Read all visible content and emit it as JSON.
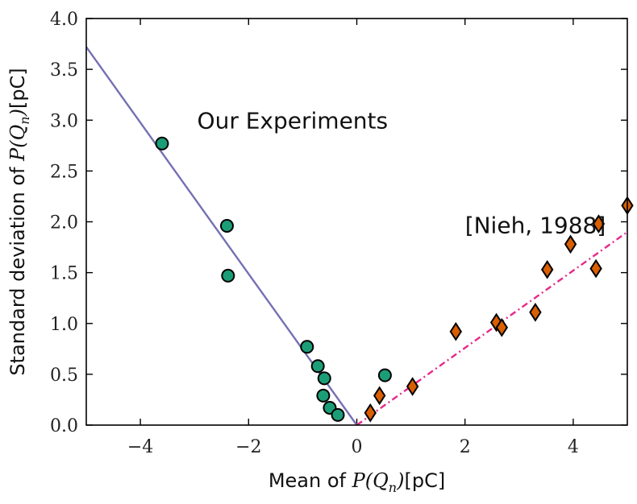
{
  "chart_data": {
    "type": "scatter",
    "title": "",
    "xlabel": {
      "prefix": "Mean of ",
      "math": "P(Q",
      "sub": "n",
      "close": ")",
      "unit": "[pC]"
    },
    "ylabel": {
      "prefix": "Standard deviation of ",
      "math": "P(Q",
      "sub": "n",
      "close": ")",
      "unit": "[pC]"
    },
    "xlim": [
      -5,
      5
    ],
    "ylim": [
      0,
      4
    ],
    "xticks": [
      -4,
      -2,
      0,
      2,
      4
    ],
    "xtick_labels": [
      "−4",
      "−2",
      "0",
      "2",
      "4"
    ],
    "yticks": [
      0,
      0.5,
      1,
      1.5,
      2,
      2.5,
      3,
      3.5,
      4
    ],
    "ytick_labels": [
      "0.0",
      "0.5",
      "1.0",
      "1.5",
      "2.0",
      "2.5",
      "3.0",
      "3.5",
      "4.0"
    ],
    "grid": false,
    "series": [
      {
        "name": "Our Experiments",
        "marker": "circle",
        "color": "#1b9e77",
        "points": [
          [
            -3.6,
            2.77
          ],
          [
            -2.4,
            1.96
          ],
          [
            -2.38,
            1.47
          ],
          [
            -0.92,
            0.77
          ],
          [
            -0.72,
            0.58
          ],
          [
            -0.6,
            0.46
          ],
          [
            -0.62,
            0.29
          ],
          [
            -0.5,
            0.17
          ],
          [
            -0.35,
            0.1
          ],
          [
            0.52,
            0.49
          ]
        ]
      },
      {
        "name": "[Nieh, 1988]",
        "marker": "diamond",
        "color": "#d95f02",
        "points": [
          [
            0.25,
            0.12
          ],
          [
            0.42,
            0.29
          ],
          [
            1.03,
            0.38
          ],
          [
            1.83,
            0.92
          ],
          [
            2.58,
            1.01
          ],
          [
            2.68,
            0.96
          ],
          [
            3.3,
            1.11
          ],
          [
            3.52,
            1.53
          ],
          [
            3.95,
            1.78
          ],
          [
            4.42,
            1.54
          ],
          [
            4.47,
            1.98
          ],
          [
            5.0,
            2.16
          ]
        ]
      }
    ],
    "fit_lines": [
      {
        "name": "fit-left",
        "color": "#7570b3",
        "style": "solid",
        "points": [
          [
            -5,
            3.72
          ],
          [
            0,
            0
          ]
        ]
      },
      {
        "name": "fit-right",
        "color": "#e7298a",
        "style": "dashdot",
        "points": [
          [
            0,
            0
          ],
          [
            5,
            1.9
          ]
        ]
      }
    ],
    "annotations": [
      {
        "text": "Our Experiments",
        "x": -2.95,
        "y": 3.0
      },
      {
        "text": "[Nieh, 1988]",
        "x": 2.0,
        "y": 1.97
      }
    ]
  }
}
